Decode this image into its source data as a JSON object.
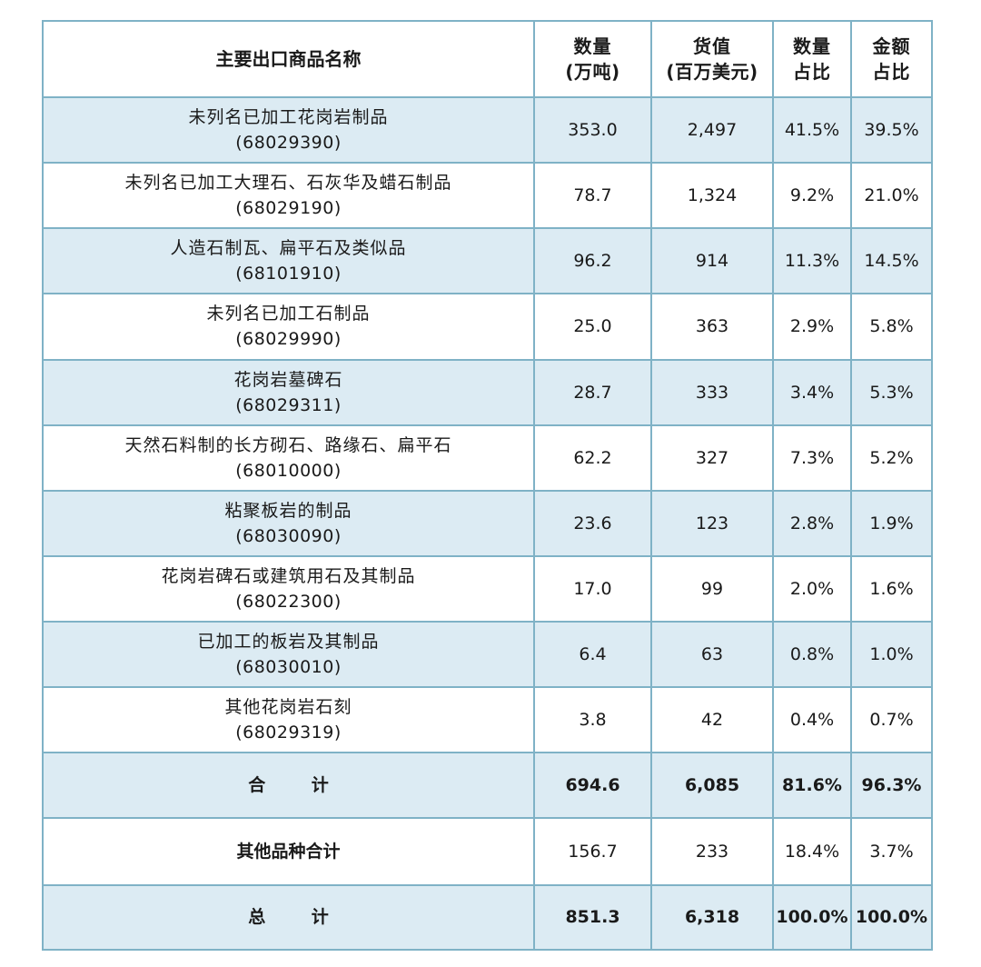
{
  "headers": {
    "name": "主要出口商品名称",
    "qty_line1": "数量",
    "qty_line2": "(万吨)",
    "value_line1": "货值",
    "value_line2": "(百万美元)",
    "qty_share_line1": "数量",
    "qty_share_line2": "占比",
    "amount_share_line1": "金额",
    "amount_share_line2": "占比"
  },
  "rows": [
    {
      "name": "未列名已加工花岗岩制品",
      "code": "(68029390)",
      "qty": "353.0",
      "value": "2,497",
      "qty_share": "41.5%",
      "amount_share": "39.5%"
    },
    {
      "name": "未列名已加工大理石、石灰华及蜡石制品",
      "code": "(68029190)",
      "qty": "78.7",
      "value": "1,324",
      "qty_share": "9.2%",
      "amount_share": "21.0%"
    },
    {
      "name": "人造石制瓦、扁平石及类似品",
      "code": "(68101910)",
      "qty": "96.2",
      "value": "914",
      "qty_share": "11.3%",
      "amount_share": "14.5%"
    },
    {
      "name": "未列名已加工石制品",
      "code": "(68029990)",
      "qty": "25.0",
      "value": "363",
      "qty_share": "2.9%",
      "amount_share": "5.8%"
    },
    {
      "name": "花岗岩墓碑石",
      "code": "(68029311)",
      "qty": "28.7",
      "value": "333",
      "qty_share": "3.4%",
      "amount_share": "5.3%"
    },
    {
      "name": "天然石料制的长方砌石、路缘石、扁平石",
      "code": "(68010000)",
      "qty": "62.2",
      "value": "327",
      "qty_share": "7.3%",
      "amount_share": "5.2%"
    },
    {
      "name": "粘聚板岩的制品",
      "code": "(68030090)",
      "qty": "23.6",
      "value": "123",
      "qty_share": "2.8%",
      "amount_share": "1.9%"
    },
    {
      "name": "花岗岩碑石或建筑用石及其制品",
      "code": "(68022300)",
      "qty": "17.0",
      "value": "99",
      "qty_share": "2.0%",
      "amount_share": "1.6%"
    },
    {
      "name": "已加工的板岩及其制品",
      "code": "(68030010)",
      "qty": "6.4",
      "value": "63",
      "qty_share": "0.8%",
      "amount_share": "1.0%"
    },
    {
      "name": "其他花岗岩石刻",
      "code": "(68029319)",
      "qty": "3.8",
      "value": "42",
      "qty_share": "0.4%",
      "amount_share": "0.7%"
    }
  ],
  "subtotal": {
    "label": "合 计",
    "qty": "694.6",
    "value": "6,085",
    "qty_share": "81.6%",
    "amount_share": "96.3%"
  },
  "others": {
    "label": "其他品种合计",
    "qty": "156.7",
    "value": "233",
    "qty_share": "18.4%",
    "amount_share": "3.7%"
  },
  "total": {
    "label": "总 计",
    "qty": "851.3",
    "value": "6,318",
    "qty_share": "100.0%",
    "amount_share": "100.0%"
  },
  "colors": {
    "border": "#7fb2c6",
    "shade": "#dcebf3"
  }
}
